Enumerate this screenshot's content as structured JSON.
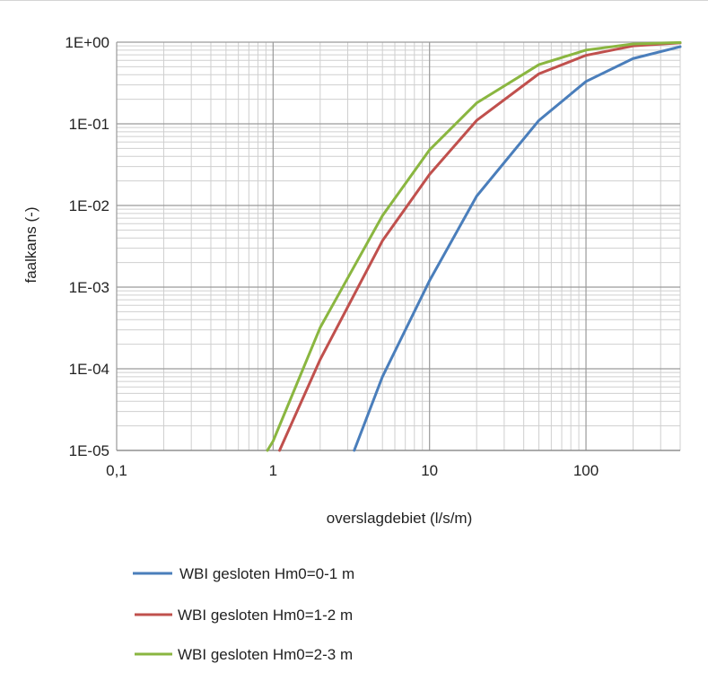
{
  "chart_data": {
    "type": "line",
    "title": "",
    "xlabel": "overslagdebiet (l/s/m)",
    "ylabel": "faalkans (-)",
    "xscale": "log",
    "yscale": "log",
    "xlim": [
      0.1,
      400
    ],
    "ylim": [
      1e-05,
      1
    ],
    "x_ticks": [
      {
        "value": 0.1,
        "label": "0,1"
      },
      {
        "value": 1,
        "label": "1"
      },
      {
        "value": 10,
        "label": "10"
      },
      {
        "value": 100,
        "label": "100"
      }
    ],
    "y_ticks": [
      {
        "value": 1,
        "label": "1E+00"
      },
      {
        "value": 0.1,
        "label": "1E-01"
      },
      {
        "value": 0.01,
        "label": "1E-02"
      },
      {
        "value": 0.001,
        "label": "1E-03"
      },
      {
        "value": 0.0001,
        "label": "1E-04"
      },
      {
        "value": 1e-05,
        "label": "1E-05"
      }
    ],
    "grid": true,
    "legend_position": "bottom",
    "series": [
      {
        "name": "WBI gesloten Hm0=0-1 m",
        "color": "#4a7ebb",
        "points": [
          [
            3.3,
            1e-05
          ],
          [
            5,
            8e-05
          ],
          [
            10,
            0.0012
          ],
          [
            20,
            0.013
          ],
          [
            50,
            0.11
          ],
          [
            100,
            0.33
          ],
          [
            200,
            0.63
          ],
          [
            400,
            0.88
          ]
        ]
      },
      {
        "name": "WBI gesloten Hm0=1-2 m",
        "color": "#c0504d",
        "points": [
          [
            1.1,
            1e-05
          ],
          [
            2,
            0.00013
          ],
          [
            5,
            0.0037
          ],
          [
            10,
            0.024
          ],
          [
            20,
            0.11
          ],
          [
            50,
            0.41
          ],
          [
            100,
            0.69
          ],
          [
            200,
            0.9
          ],
          [
            400,
            0.98
          ]
        ]
      },
      {
        "name": "WBI gesloten Hm0=2-3 m",
        "color": "#8ab640",
        "points": [
          [
            0.92,
            1e-05
          ],
          [
            1,
            1.3e-05
          ],
          [
            2,
            0.00032
          ],
          [
            5,
            0.0075
          ],
          [
            10,
            0.048
          ],
          [
            20,
            0.18
          ],
          [
            50,
            0.53
          ],
          [
            100,
            0.8
          ],
          [
            200,
            0.95
          ],
          [
            400,
            0.99
          ]
        ]
      }
    ]
  }
}
